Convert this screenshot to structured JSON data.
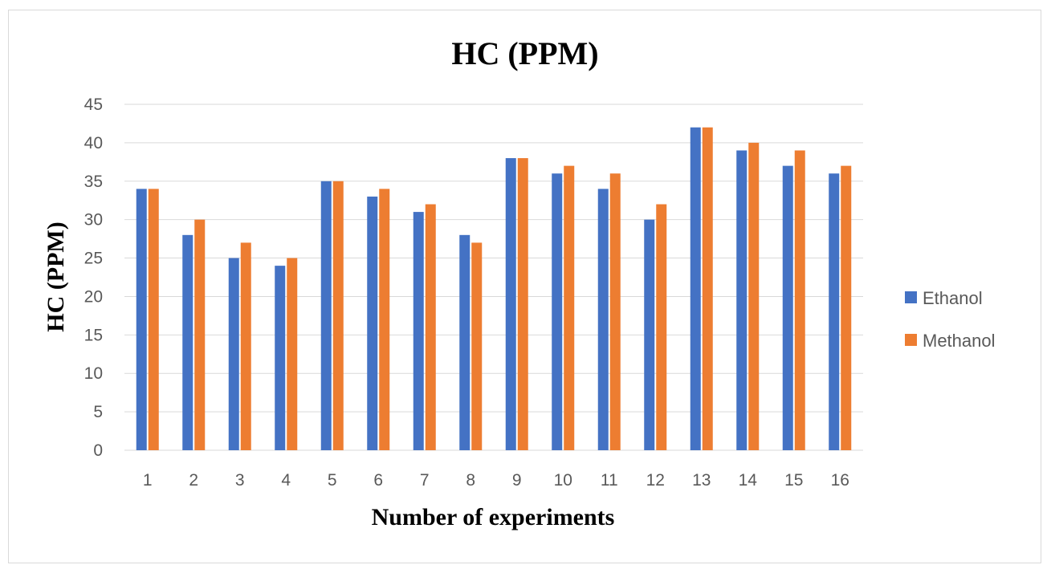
{
  "chart_data": {
    "type": "bar",
    "title": "HC (PPM)",
    "xlabel": "Number of experiments",
    "ylabel": "HC (PPM)",
    "categories": [
      "1",
      "2",
      "3",
      "4",
      "5",
      "6",
      "7",
      "8",
      "9",
      "10",
      "11",
      "12",
      "13",
      "14",
      "15",
      "16"
    ],
    "series": [
      {
        "name": "Ethanol",
        "color": "#4472C4",
        "values": [
          34,
          28,
          25,
          24,
          35,
          33,
          31,
          28,
          38,
          36,
          34,
          30,
          42,
          39,
          37,
          36
        ]
      },
      {
        "name": "Methanol",
        "color": "#ED7D31",
        "values": [
          34,
          30,
          27,
          25,
          35,
          34,
          32,
          27,
          38,
          37,
          36,
          32,
          42,
          40,
          39,
          37
        ]
      }
    ],
    "ylim": [
      0,
      45
    ],
    "yticks": [
      0,
      5,
      10,
      15,
      20,
      25,
      30,
      35,
      40,
      45
    ],
    "grid": true,
    "legend_position": "right"
  }
}
